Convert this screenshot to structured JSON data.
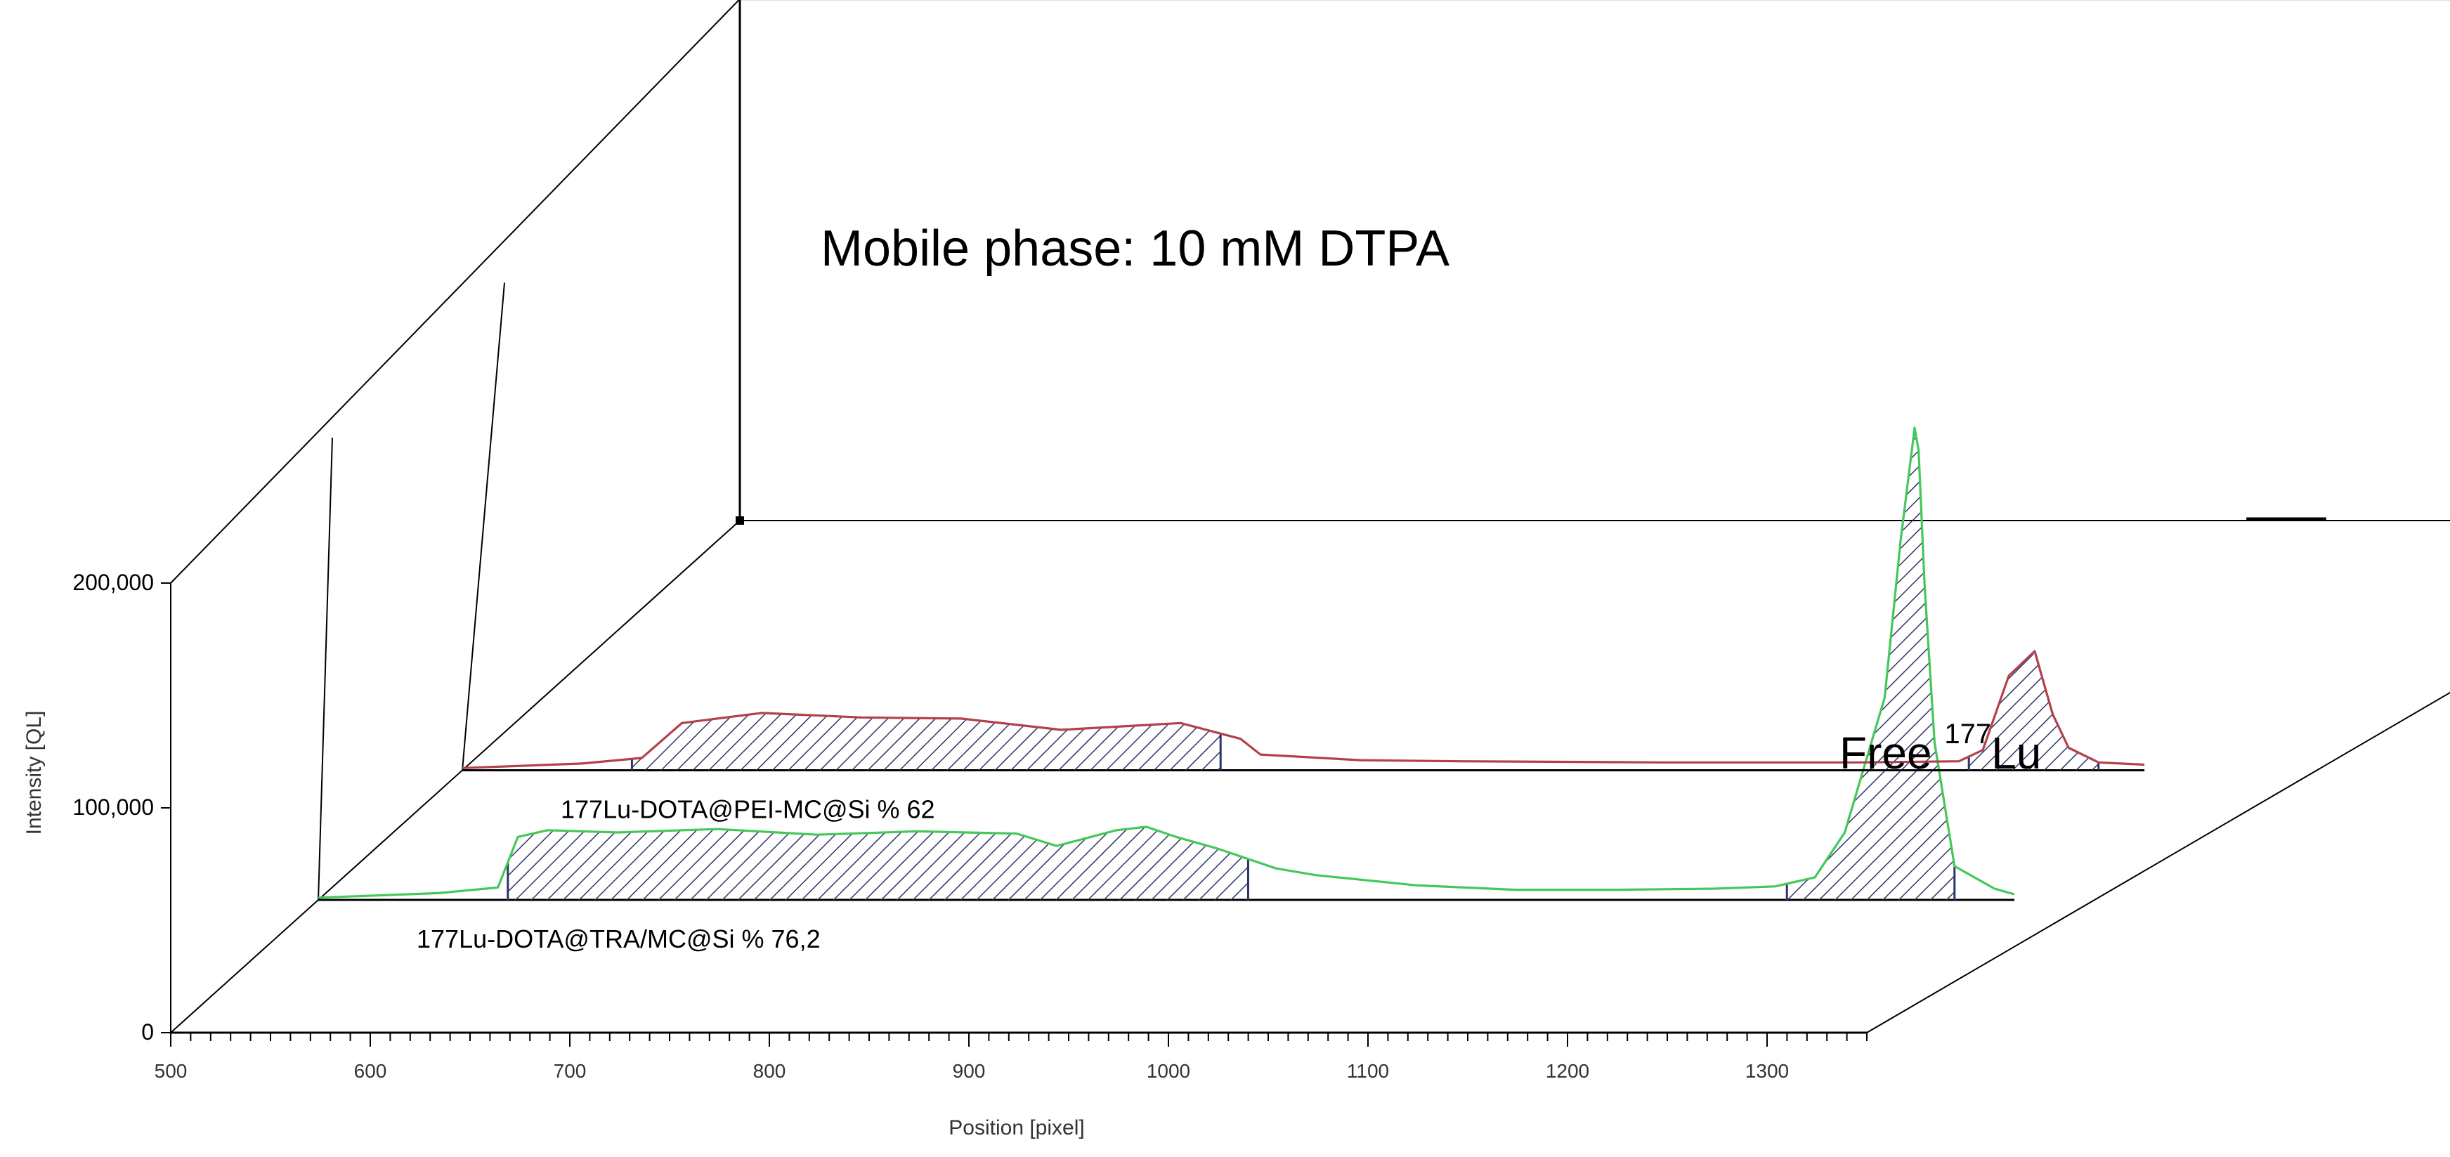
{
  "chart_data": {
    "type": "line",
    "title": "Mobile phase: 10 mM DTPA",
    "xlabel": "Position [pixel]",
    "ylabel": "Intensity [QL]",
    "xlim": [
      500,
      1350
    ],
    "ylim": [
      0,
      200000
    ],
    "x_ticks": [
      "500",
      "600",
      "700",
      "800",
      "900",
      "1000",
      "1100",
      "1200",
      "1300"
    ],
    "y_ticks": [
      "0",
      "100,000",
      "200,000"
    ],
    "grid": false,
    "annotation": {
      "prefix": "Free ",
      "superscript": "177",
      "suffix": "Lu"
    },
    "series": [
      {
        "label": "177Lu-DOTA@TRA/MC@Si    % 76,2",
        "color": "#44c85a",
        "x": [
          500,
          560,
          590,
          600,
          615,
          650,
          700,
          750,
          800,
          850,
          870,
          900,
          915,
          930,
          950,
          980,
          1000,
          1050,
          1100,
          1150,
          1200,
          1230,
          1250,
          1265,
          1285,
          1293,
          1300,
          1302,
          1305,
          1310,
          1320,
          1340,
          1350
        ],
        "y": [
          1000,
          3000,
          5500,
          28000,
          31000,
          30000,
          31500,
          29000,
          30500,
          29500,
          24000,
          31000,
          32500,
          28000,
          23000,
          14000,
          11000,
          6500,
          4500,
          4500,
          5000,
          6000,
          10000,
          30000,
          90000,
          160000,
          210000,
          200000,
          140000,
          70000,
          15000,
          5000,
          2500
        ],
        "shaded_regions": [
          [
            595,
            966
          ],
          [
            1236,
            1320
          ]
        ]
      },
      {
        "label": "177Lu-DOTA@PEI-MC@Si    % 62",
        "color": "#b3404a",
        "x": [
          500,
          560,
          590,
          610,
          650,
          700,
          750,
          800,
          830,
          860,
          890,
          900,
          950,
          1000,
          1100,
          1200,
          1250,
          1262,
          1275,
          1288,
          1297,
          1305,
          1320,
          1343
        ],
        "y": [
          1000,
          3000,
          5500,
          21000,
          25500,
          23500,
          23000,
          18000,
          19500,
          21000,
          14000,
          7000,
          4500,
          4000,
          3500,
          3500,
          4000,
          9000,
          42000,
          53000,
          25000,
          10000,
          3500,
          2500
        ],
        "shaded_regions": [
          [
            585,
            880
          ],
          [
            1255,
            1320
          ]
        ]
      }
    ]
  }
}
